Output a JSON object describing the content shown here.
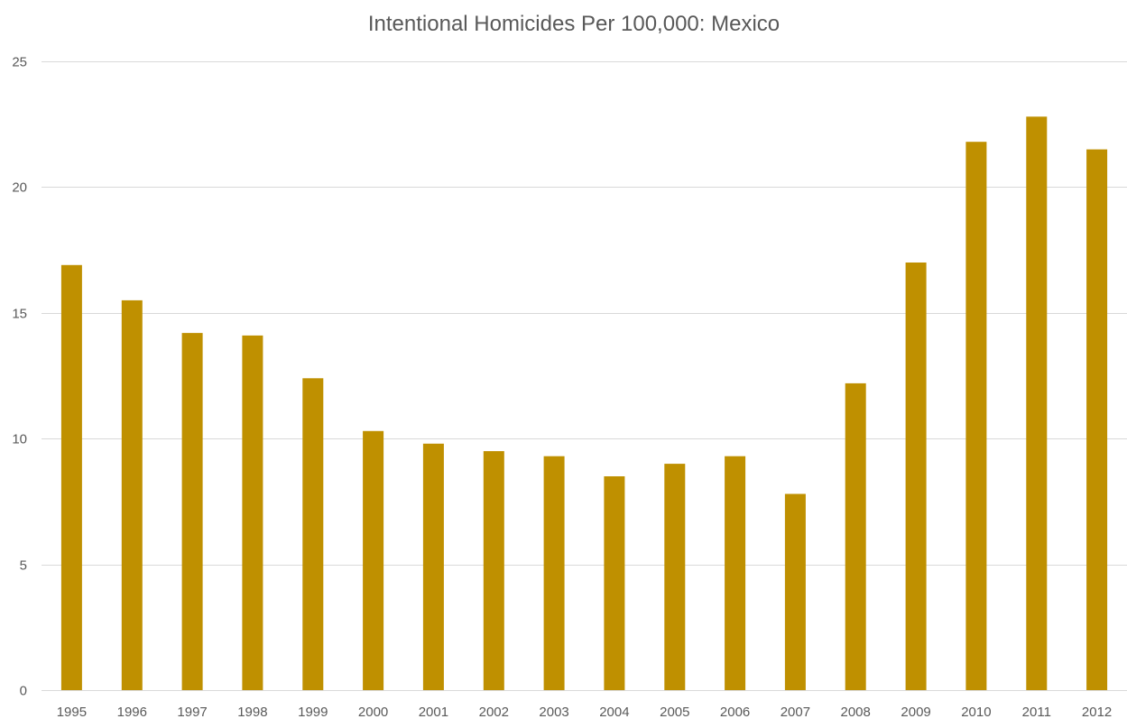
{
  "chart_data": {
    "type": "bar",
    "title": "Intentional Homicides Per 100,000: Mexico",
    "xlabel": "",
    "ylabel": "",
    "categories": [
      "1995",
      "1996",
      "1997",
      "1998",
      "1999",
      "2000",
      "2001",
      "2002",
      "2003",
      "2004",
      "2005",
      "2006",
      "2007",
      "2008",
      "2009",
      "2010",
      "2011",
      "2012"
    ],
    "values": [
      16.9,
      15.5,
      14.2,
      14.1,
      12.4,
      10.3,
      9.8,
      9.5,
      9.3,
      8.5,
      9.0,
      9.3,
      7.8,
      12.2,
      17.0,
      21.8,
      22.8,
      21.5
    ],
    "ylim": [
      0,
      25
    ],
    "yticks": [
      "0",
      "5",
      "10",
      "15",
      "20",
      "25"
    ],
    "grid": true,
    "legend": "none",
    "bar_color": "#bf9000"
  }
}
